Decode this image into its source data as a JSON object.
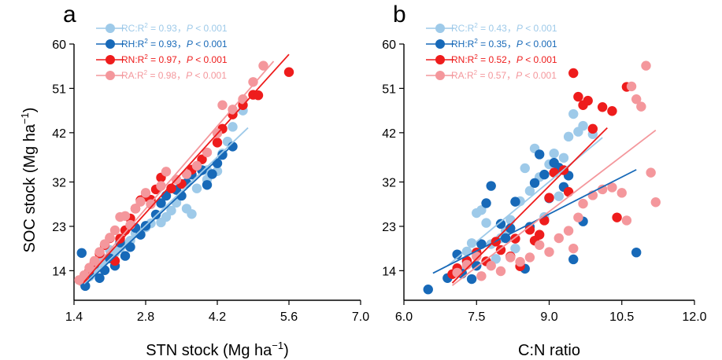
{
  "colors": {
    "RC": "#9ECAE9",
    "RH": "#1769B8",
    "RN": "#EE1C1C",
    "RA": "#F4979C"
  },
  "chart_data": [
    {
      "type": "scatter",
      "panel_label": "a",
      "xlabel": "STN stock (Mg ha",
      "xlabel_exp": "−1",
      "xlabel_close": ")",
      "ylabel": "SOC stock (Mg ha",
      "ylabel_exp": "−1",
      "ylabel_close": ")",
      "xlim": [
        1.4,
        7.0
      ],
      "ylim": [
        8.0,
        60.0
      ],
      "xticks": [
        "1.4",
        "2.8",
        "4.2",
        "5.6",
        "7.0"
      ],
      "yticks": [
        "14",
        "23",
        "32",
        "42",
        "51",
        "60"
      ],
      "legend": [
        {
          "key": "RC",
          "label": "RC:R",
          "r2": " = 0.93，",
          "p": "P",
          "pval": " < 0.001"
        },
        {
          "key": "RH",
          "label": "RH:R",
          "r2": " = 0.93，",
          "p": "P",
          "pval": " < 0.001"
        },
        {
          "key": "RN",
          "label": "RN:R",
          "r2": " = 0.97，",
          "p": "P",
          "pval": " < 0.001"
        },
        {
          "key": "RA",
          "label": "RA:R",
          "r2": " = 0.98，",
          "p": "P",
          "pval": " < 0.001"
        }
      ],
      "series": [
        {
          "key": "RC",
          "fit": [
            [
              1.6,
              11.3
            ],
            [
              4.8,
              43.0
            ]
          ],
          "points": [
            [
              1.7,
              12.8
            ],
            [
              1.8,
              14.2
            ],
            [
              1.9,
              15.5
            ],
            [
              2.0,
              16.3
            ],
            [
              2.1,
              18.2
            ],
            [
              2.2,
              17.6
            ],
            [
              2.3,
              18.6
            ],
            [
              2.4,
              19.3
            ],
            [
              2.5,
              20.1
            ],
            [
              2.6,
              21.6
            ],
            [
              2.7,
              22.0
            ],
            [
              2.8,
              22.8
            ],
            [
              2.9,
              23.6
            ],
            [
              3.1,
              23.8
            ],
            [
              3.2,
              24.9
            ],
            [
              3.3,
              26.2
            ],
            [
              3.4,
              27.8
            ],
            [
              3.6,
              26.6
            ],
            [
              3.7,
              25.5
            ],
            [
              3.8,
              30.7
            ],
            [
              4.0,
              32.5
            ],
            [
              4.0,
              34.4
            ],
            [
              4.2,
              34.2
            ],
            [
              4.3,
              37.8
            ],
            [
              4.4,
              40.2
            ],
            [
              4.5,
              43.2
            ],
            [
              4.7,
              46.5
            ]
          ]
        },
        {
          "key": "RH",
          "fit": [
            [
              1.6,
              11.0
            ],
            [
              4.5,
              39.5
            ]
          ],
          "points": [
            [
              1.55,
              17.6
            ],
            [
              1.62,
              10.9
            ],
            [
              1.7,
              13.1
            ],
            [
              1.8,
              15.3
            ],
            [
              1.9,
              12.5
            ],
            [
              2.0,
              14.1
            ],
            [
              2.1,
              16.5
            ],
            [
              2.2,
              15.0
            ],
            [
              2.3,
              19.7
            ],
            [
              2.4,
              17.0
            ],
            [
              2.5,
              18.8
            ],
            [
              2.6,
              22.7
            ],
            [
              2.7,
              21.3
            ],
            [
              2.8,
              23.1
            ],
            [
              3.0,
              25.4
            ],
            [
              3.1,
              27.7
            ],
            [
              3.2,
              29.2
            ],
            [
              3.4,
              30.4
            ],
            [
              3.5,
              29.2
            ],
            [
              3.6,
              31.8
            ],
            [
              3.7,
              33.5
            ],
            [
              3.9,
              34.4
            ],
            [
              4.0,
              31.4
            ],
            [
              4.1,
              33.6
            ],
            [
              4.2,
              35.8
            ],
            [
              4.3,
              37.5
            ],
            [
              4.5,
              39.2
            ]
          ]
        },
        {
          "key": "RN",
          "fit": [
            [
              1.6,
              11.9
            ],
            [
              5.6,
              57.9
            ]
          ],
          "points": [
            [
              1.6,
              12.4
            ],
            [
              1.7,
              14.1
            ],
            [
              1.8,
              15.7
            ],
            [
              1.9,
              17.5
            ],
            [
              2.0,
              19.2
            ],
            [
              2.1,
              20.6
            ],
            [
              2.2,
              16.0
            ],
            [
              2.3,
              20.5
            ],
            [
              2.4,
              22.2
            ],
            [
              2.5,
              24.6
            ],
            [
              2.6,
              26.6
            ],
            [
              2.7,
              28.3
            ],
            [
              2.8,
              29.0
            ],
            [
              2.9,
              28.4
            ],
            [
              3.0,
              30.5
            ],
            [
              3.1,
              32.9
            ],
            [
              3.3,
              30.7
            ],
            [
              3.5,
              31.6
            ],
            [
              3.7,
              34.5
            ],
            [
              3.9,
              36.6
            ],
            [
              4.2,
              40.0
            ],
            [
              4.3,
              42.8
            ],
            [
              4.5,
              45.7
            ],
            [
              4.7,
              47.6
            ],
            [
              4.9,
              49.7
            ],
            [
              5.0,
              49.6
            ],
            [
              5.6,
              54.3
            ]
          ]
        },
        {
          "key": "RA",
          "fit": [
            [
              1.5,
              11.0
            ],
            [
              5.3,
              56.5
            ]
          ],
          "points": [
            [
              1.5,
              12.1
            ],
            [
              1.6,
              13.1
            ],
            [
              1.7,
              14.6
            ],
            [
              1.8,
              16.0
            ],
            [
              1.9,
              17.8
            ],
            [
              2.0,
              19.4
            ],
            [
              2.1,
              20.7
            ],
            [
              2.2,
              22.2
            ],
            [
              2.3,
              24.9
            ],
            [
              2.4,
              25.1
            ],
            [
              2.5,
              23.3
            ],
            [
              2.6,
              26.6
            ],
            [
              2.7,
              28.0
            ],
            [
              2.8,
              29.8
            ],
            [
              2.9,
              27.5
            ],
            [
              3.1,
              31.2
            ],
            [
              3.2,
              34.1
            ],
            [
              3.4,
              32.5
            ],
            [
              3.6,
              33.6
            ],
            [
              3.8,
              35.3
            ],
            [
              4.0,
              38.0
            ],
            [
              4.2,
              41.9
            ],
            [
              4.3,
              47.6
            ],
            [
              4.5,
              46.7
            ],
            [
              4.7,
              48.8
            ],
            [
              4.9,
              52.3
            ],
            [
              5.1,
              55.6
            ]
          ]
        }
      ]
    },
    {
      "type": "scatter",
      "panel_label": "b",
      "xlabel": "C:N ratio",
      "xlim": [
        6.0,
        12.0
      ],
      "ylim": [
        8.0,
        60.0
      ],
      "xticks": [
        "6.0",
        "7.5",
        "9.0",
        "10.5",
        "12.0"
      ],
      "yticks": [
        "14",
        "23",
        "32",
        "42",
        "51",
        "60"
      ],
      "legend": [
        {
          "key": "RC",
          "label": "RC:R",
          "r2": " = 0.43，",
          "p": "P",
          "pval": " < 0.001"
        },
        {
          "key": "RH",
          "label": "RH:R",
          "r2": " = 0.35，",
          "p": "P",
          "pval": " < 0.001"
        },
        {
          "key": "RN",
          "label": "RN:R",
          "r2": " = 0.52，",
          "p": "P",
          "pval": " < 0.001"
        },
        {
          "key": "RA",
          "label": "RA:R",
          "r2": " = 0.57，",
          "p": "P",
          "pval": " < 0.001"
        }
      ],
      "series": [
        {
          "key": "RC",
          "fit": [
            [
              6.9,
              15.0
            ],
            [
              10.1,
              41.0
            ]
          ],
          "points": [
            [
              7.2,
              13.8
            ],
            [
              7.3,
              17.9
            ],
            [
              7.4,
              19.6
            ],
            [
              7.5,
              25.7
            ],
            [
              7.6,
              26.3
            ],
            [
              7.7,
              23.7
            ],
            [
              7.8,
              19.4
            ],
            [
              7.9,
              16.4
            ],
            [
              8.0,
              20.6
            ],
            [
              8.1,
              22.1
            ],
            [
              8.2,
              24.3
            ],
            [
              8.3,
              18.5
            ],
            [
              8.4,
              28.1
            ],
            [
              8.5,
              34.8
            ],
            [
              8.6,
              30.2
            ],
            [
              8.7,
              38.8
            ],
            [
              8.8,
              33.0
            ],
            [
              8.9,
              24.9
            ],
            [
              9.0,
              35.6
            ],
            [
              9.1,
              37.8
            ],
            [
              9.2,
              29.1
            ],
            [
              9.3,
              36.9
            ],
            [
              9.4,
              41.2
            ],
            [
              9.5,
              45.8
            ],
            [
              9.6,
              42.2
            ],
            [
              9.7,
              43.4
            ],
            [
              9.9,
              41.7
            ]
          ]
        },
        {
          "key": "RH",
          "fit": [
            [
              6.6,
              13.5
            ],
            [
              10.8,
              34.5
            ]
          ],
          "points": [
            [
              6.5,
              10.2
            ],
            [
              6.9,
              12.5
            ],
            [
              7.1,
              17.3
            ],
            [
              7.2,
              13.4
            ],
            [
              7.3,
              15.8
            ],
            [
              7.4,
              12.3
            ],
            [
              7.5,
              15.0
            ],
            [
              7.6,
              19.4
            ],
            [
              7.7,
              27.7
            ],
            [
              7.8,
              31.2
            ],
            [
              8.0,
              23.5
            ],
            [
              8.1,
              20.6
            ],
            [
              8.2,
              22.6
            ],
            [
              8.3,
              28.0
            ],
            [
              8.5,
              14.4
            ],
            [
              8.6,
              22.9
            ],
            [
              8.7,
              31.8
            ],
            [
              8.8,
              37.6
            ],
            [
              8.9,
              33.5
            ],
            [
              9.0,
              28.7
            ],
            [
              9.1,
              35.9
            ],
            [
              9.2,
              34.9
            ],
            [
              9.3,
              31.0
            ],
            [
              9.4,
              33.3
            ],
            [
              9.5,
              16.3
            ],
            [
              9.7,
              24.0
            ],
            [
              10.8,
              17.7
            ]
          ]
        },
        {
          "key": "RN",
          "fit": [
            [
              7.0,
              11.5
            ],
            [
              10.2,
              43.0
            ]
          ],
          "points": [
            [
              7.0,
              13.3
            ],
            [
              7.1,
              14.5
            ],
            [
              7.3,
              16.0
            ],
            [
              7.5,
              17.7
            ],
            [
              7.7,
              15.9
            ],
            [
              7.9,
              19.9
            ],
            [
              8.0,
              18.2
            ],
            [
              8.2,
              16.9
            ],
            [
              8.3,
              20.5
            ],
            [
              8.4,
              14.9
            ],
            [
              8.6,
              22.3
            ],
            [
              8.7,
              20.1
            ],
            [
              8.8,
              21.3
            ],
            [
              8.9,
              24.2
            ],
            [
              9.0,
              28.8
            ],
            [
              9.1,
              33.9
            ],
            [
              9.3,
              34.4
            ],
            [
              9.4,
              30.0
            ],
            [
              9.5,
              54.1
            ],
            [
              9.6,
              49.3
            ],
            [
              9.7,
              47.6
            ],
            [
              9.8,
              48.5
            ],
            [
              9.9,
              42.8
            ],
            [
              10.1,
              47.2
            ],
            [
              10.3,
              46.4
            ],
            [
              10.4,
              24.8
            ],
            [
              10.6,
              51.3
            ]
          ]
        },
        {
          "key": "RA",
          "fit": [
            [
              7.0,
              11.0
            ],
            [
              11.2,
              42.5
            ]
          ],
          "points": [
            [
              7.1,
              13.6
            ],
            [
              7.3,
              15.2
            ],
            [
              7.5,
              16.9
            ],
            [
              7.6,
              12.9
            ],
            [
              7.8,
              15.0
            ],
            [
              8.0,
              13.9
            ],
            [
              8.2,
              16.7
            ],
            [
              8.4,
              15.8
            ],
            [
              8.6,
              16.7
            ],
            [
              8.8,
              19.2
            ],
            [
              9.0,
              17.8
            ],
            [
              9.2,
              20.6
            ],
            [
              9.4,
              22.1
            ],
            [
              9.5,
              18.5
            ],
            [
              9.6,
              24.8
            ],
            [
              9.7,
              27.6
            ],
            [
              9.9,
              29.3
            ],
            [
              10.1,
              30.5
            ],
            [
              10.3,
              30.9
            ],
            [
              10.5,
              29.8
            ],
            [
              10.6,
              24.2
            ],
            [
              10.7,
              51.4
            ],
            [
              10.8,
              48.8
            ],
            [
              10.9,
              47.3
            ],
            [
              11.0,
              55.6
            ],
            [
              11.1,
              33.9
            ],
            [
              11.2,
              27.9
            ]
          ]
        }
      ]
    }
  ]
}
